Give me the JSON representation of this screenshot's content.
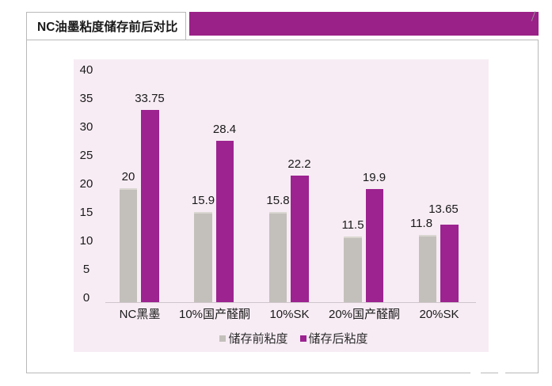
{
  "chart_data": {
    "type": "bar",
    "title": "NC油墨粘度储存前后对比",
    "categories": [
      "NC黑墨",
      "10%国产醛酮",
      "10%SK",
      "20%国产醛酮",
      "20%SK"
    ],
    "series": [
      {
        "name": "储存前粘度",
        "color": "#c3c0bb",
        "values": [
          20,
          15.9,
          15.8,
          11.5,
          11.8
        ]
      },
      {
        "name": "储存后粘度",
        "color": "#9c2390",
        "values": [
          33.75,
          28.4,
          22.2,
          19.9,
          13.65
        ]
      }
    ],
    "xlabel": "",
    "ylabel": "",
    "ylim": [
      0,
      40
    ],
    "yticks": [
      0,
      5,
      10,
      15,
      20,
      25,
      30,
      35,
      40
    ],
    "grid": false,
    "data_labels": true,
    "legend_position": "bottom",
    "plot_bg": "#f7ecf4"
  },
  "header": {
    "banner_color": "#9a2187"
  }
}
